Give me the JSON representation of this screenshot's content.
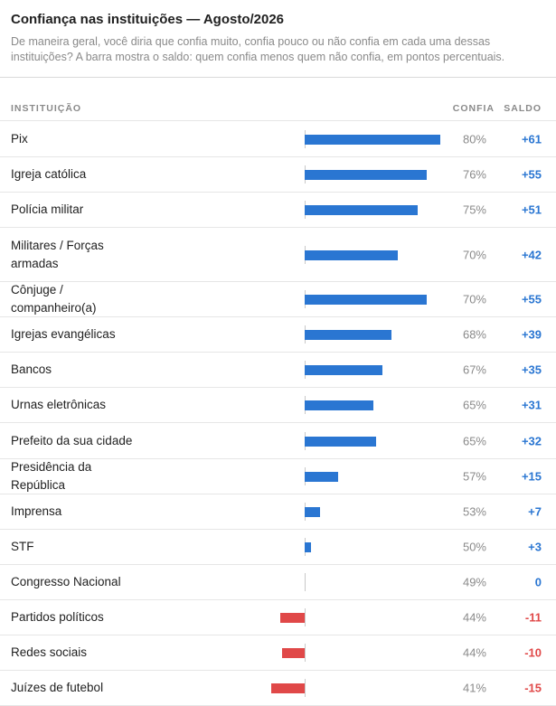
{
  "header": {
    "title": "Confiança nas instituições — Agosto/2026",
    "subtitle": "De maneira geral, você diria que confia muito, confia pouco ou não confia em cada uma dessas instituições? A barra mostra o saldo: quem confia menos quem não confia, em pontos percentuais."
  },
  "columns": {
    "institution": "INSTITUIÇÃO",
    "trust": "CONFIA",
    "balance": "SALDO"
  },
  "colors": {
    "positive": "#2a76d2",
    "negative": "#e04848"
  },
  "chart_data": {
    "type": "bar",
    "orientation": "horizontal",
    "categories": [
      "Pix",
      "Igreja católica",
      "Polícia militar",
      "Militares / Forças armadas",
      "Cônjuge / companheiro(a)",
      "Igrejas evangélicas",
      "Bancos",
      "Urnas eletrônicas",
      "Prefeito da sua cidade",
      "Presidência da República",
      "Imprensa",
      "STF",
      "Congresso Nacional",
      "Partidos políticos",
      "Redes sociais",
      "Juízes de futebol"
    ],
    "series": [
      {
        "name": "SALDO",
        "values": [
          61,
          55,
          51,
          42,
          55,
          39,
          35,
          31,
          32,
          15,
          7,
          3,
          0,
          -11,
          -10,
          -15
        ]
      },
      {
        "name": "CONFIA",
        "values": [
          80,
          76,
          75,
          70,
          70,
          68,
          67,
          65,
          65,
          57,
          53,
          50,
          49,
          44,
          44,
          41
        ]
      }
    ],
    "conf_labels": [
      "80%",
      "76%",
      "75%",
      "70%",
      "70%",
      "68%",
      "67%",
      "65%",
      "65%",
      "57%",
      "53%",
      "50%",
      "49%",
      "44%",
      "44%",
      "41%"
    ],
    "saldo_labels": [
      "+61",
      "+55",
      "+51",
      "+42",
      "+55",
      "+39",
      "+35",
      "+31",
      "+32",
      "+15",
      "+7",
      "+3",
      "0",
      "-11",
      "-10",
      "-15"
    ]
  }
}
